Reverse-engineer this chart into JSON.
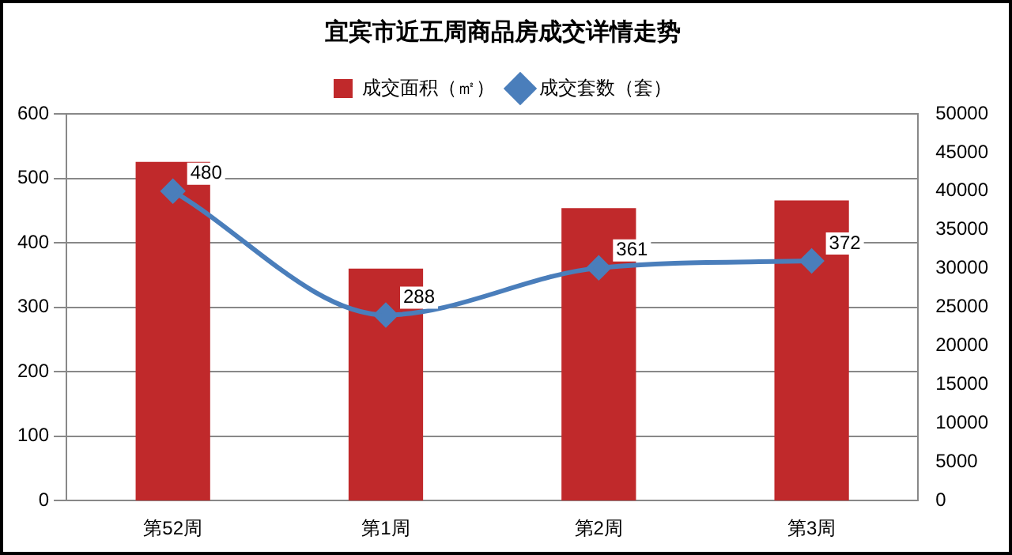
{
  "chart_data": {
    "type": "bar",
    "title": "宜宾市近五周商品房成交详情走势",
    "categories": [
      "第52周",
      "第1周",
      "第2周",
      "第3周"
    ],
    "series": [
      {
        "name": "成交面积（㎡）",
        "axis": "y2",
        "color": "#c0292b",
        "values": [
          43800,
          30000,
          37800,
          38800
        ]
      },
      {
        "name": "成交套数（套）",
        "type": "line",
        "color": "#4a7ebb",
        "values": [
          480,
          288,
          361,
          372
        ],
        "marker": "diamond",
        "data_labels": true
      }
    ],
    "ylim": [
      0,
      600
    ],
    "yticks": [
      0,
      100,
      200,
      300,
      400,
      500,
      600
    ],
    "y2lim": [
      0,
      50000
    ],
    "y2ticks": [
      0,
      5000,
      10000,
      15000,
      20000,
      25000,
      30000,
      35000,
      40000,
      45000,
      50000
    ],
    "grid": "y",
    "legend": "top"
  }
}
